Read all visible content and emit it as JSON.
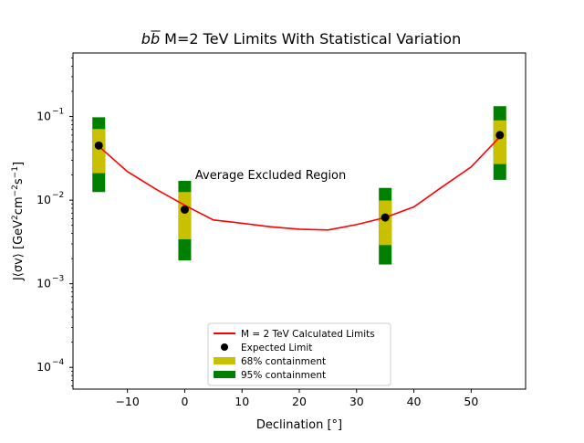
{
  "chart_data": {
    "type": "line",
    "title_prefix": "b",
    "title_prefix_bar": "b",
    "title_rest": " M=2 TeV Limits With Statistical Variation",
    "xlabel": "Declination [°]",
    "ylabel_main": "J⟨σv⟩   [GeV",
    "ylabel_cm": "cm",
    "ylabel_s": "s",
    "ylabel_close": "]",
    "ylabel_sup": "2",
    "ylabel_sup_neg": "−2",
    "ylabel_sup_neg1": "−1",
    "xlim": [
      -19.5,
      59.5
    ],
    "ylim_log10": [
      -4.26,
      -0.24
    ],
    "x_ticks": [
      {
        "value": -10,
        "label": "−10"
      },
      {
        "value": 0,
        "label": "0"
      },
      {
        "value": 10,
        "label": "10"
      },
      {
        "value": 20,
        "label": "20"
      },
      {
        "value": 30,
        "label": "30"
      },
      {
        "value": 40,
        "label": "40"
      },
      {
        "value": 50,
        "label": "50"
      }
    ],
    "y_ticks": [
      {
        "exp": -1,
        "base": "10",
        "sup": "−1"
      },
      {
        "exp": -2,
        "base": "10",
        "sup": "−2"
      },
      {
        "exp": -3,
        "base": "10",
        "sup": "−3"
      },
      {
        "exp": -4,
        "base": "10",
        "sup": "−4"
      }
    ],
    "limit_line": {
      "name": "M = 2 TeV Calculated Limits",
      "color": "#ff0000",
      "x": [
        -15,
        -10,
        -5,
        0,
        5,
        10,
        15,
        20,
        25,
        30,
        35,
        40,
        45,
        50,
        55
      ],
      "y": [
        0.044,
        0.022,
        0.0135,
        0.0087,
        0.0058,
        0.0053,
        0.0048,
        0.0045,
        0.0044,
        0.0051,
        0.0062,
        0.0083,
        0.0145,
        0.025,
        0.057
      ]
    },
    "expected_limits": {
      "name": "Expected Limit",
      "color": "#000000",
      "x": [
        -15,
        0,
        35,
        55
      ],
      "y": [
        0.045,
        0.0077,
        0.0062,
        0.06
      ]
    },
    "band_68": {
      "name": "68% containment",
      "color": "#c8c000",
      "x": [
        -15,
        0,
        35,
        55
      ],
      "low": [
        0.021,
        0.0034,
        0.0029,
        0.027
      ],
      "high": [
        0.071,
        0.0125,
        0.0099,
        0.09
      ]
    },
    "band_95": {
      "name": "95% containment",
      "color": "#008000",
      "x": [
        -15,
        0,
        35,
        55
      ],
      "low": [
        0.0125,
        0.0019,
        0.0017,
        0.0175
      ],
      "high": [
        0.098,
        0.017,
        0.014,
        0.133
      ]
    },
    "annotation": {
      "text": "Average Excluded Region",
      "x": 15,
      "y": 0.0198
    },
    "legend_location": "lower-center"
  }
}
